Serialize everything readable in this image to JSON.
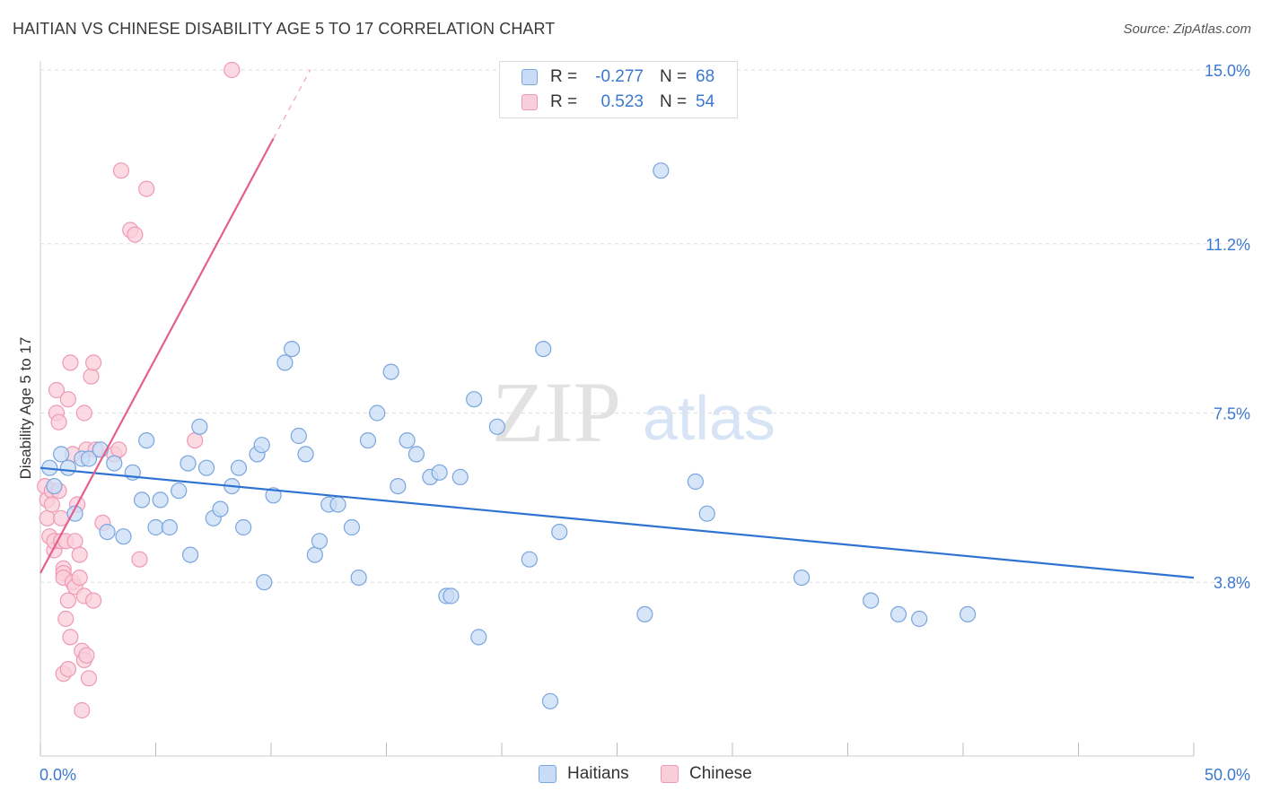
{
  "title": "HAITIAN VS CHINESE DISABILITY AGE 5 TO 17 CORRELATION CHART",
  "source": "Source: ZipAtlas.com",
  "watermark": {
    "zip": "ZIP",
    "atlas": "atlas"
  },
  "colors": {
    "blue_fill": "#c9dcf5",
    "blue_stroke": "#7aa5de",
    "blue_line": "#2f73d2",
    "pink_fill": "#f9cedb",
    "pink_stroke": "#ee9ab4",
    "pink_line": "#e4608b",
    "tick_text": "#3b78d0",
    "grid": "#dddddd"
  },
  "legend": {
    "rows": [
      {
        "r_label": "R =",
        "r_value": "-0.277",
        "n_label": "N =",
        "n_value": "68",
        "color": "blue"
      },
      {
        "r_label": "R =",
        "r_value": "0.523",
        "n_label": "N =",
        "n_value": "54",
        "color": "pink"
      }
    ]
  },
  "bottom_legend": [
    {
      "label": "Haitians",
      "color": "blue"
    },
    {
      "label": "Chinese",
      "color": "pink"
    }
  ],
  "chart_data": {
    "type": "scatter",
    "title": "HAITIAN VS CHINESE DISABILITY AGE 5 TO 17 CORRELATION CHART",
    "xlabel": "",
    "ylabel": "Disability Age 5 to 17",
    "xlim": [
      0,
      50
    ],
    "ylim": [
      0,
      15.5
    ],
    "x_tick_labels": [
      "0.0%",
      "50.0%"
    ],
    "y_ticks": [
      3.8,
      7.5,
      11.2,
      15.0
    ],
    "y_tick_labels": [
      "3.8%",
      "7.5%",
      "11.2%",
      "15.0%"
    ],
    "grid": true,
    "series": [
      {
        "name": "Haitians",
        "color": "blue",
        "trend": {
          "x": [
            0,
            50
          ],
          "y": [
            6.3,
            3.9
          ]
        },
        "points": [
          [
            0.4,
            6.3
          ],
          [
            0.6,
            5.9
          ],
          [
            0.9,
            6.6
          ],
          [
            1.2,
            6.3
          ],
          [
            1.5,
            5.3
          ],
          [
            1.8,
            6.5
          ],
          [
            2.1,
            6.5
          ],
          [
            2.6,
            6.7
          ],
          [
            2.9,
            4.9
          ],
          [
            3.2,
            6.4
          ],
          [
            3.6,
            4.8
          ],
          [
            4.0,
            6.2
          ],
          [
            4.4,
            5.6
          ],
          [
            4.6,
            6.9
          ],
          [
            5.0,
            5.0
          ],
          [
            5.2,
            5.6
          ],
          [
            5.6,
            5.0
          ],
          [
            6.0,
            5.8
          ],
          [
            6.4,
            6.4
          ],
          [
            6.5,
            4.4
          ],
          [
            6.9,
            7.2
          ],
          [
            7.2,
            6.3
          ],
          [
            7.5,
            5.2
          ],
          [
            7.8,
            5.4
          ],
          [
            8.3,
            5.9
          ],
          [
            8.6,
            6.3
          ],
          [
            8.8,
            5.0
          ],
          [
            9.4,
            6.6
          ],
          [
            9.6,
            6.8
          ],
          [
            9.7,
            3.8
          ],
          [
            10.1,
            5.7
          ],
          [
            10.6,
            8.6
          ],
          [
            10.9,
            8.9
          ],
          [
            11.2,
            7.0
          ],
          [
            11.5,
            6.6
          ],
          [
            11.9,
            4.4
          ],
          [
            12.1,
            4.7
          ],
          [
            12.5,
            5.5
          ],
          [
            12.9,
            5.5
          ],
          [
            13.5,
            5.0
          ],
          [
            13.8,
            3.9
          ],
          [
            14.2,
            6.9
          ],
          [
            14.6,
            7.5
          ],
          [
            15.2,
            8.4
          ],
          [
            15.5,
            5.9
          ],
          [
            15.9,
            6.9
          ],
          [
            16.3,
            6.6
          ],
          [
            16.9,
            6.1
          ],
          [
            17.3,
            6.2
          ],
          [
            17.6,
            3.5
          ],
          [
            17.8,
            3.5
          ],
          [
            18.2,
            6.1
          ],
          [
            18.8,
            7.8
          ],
          [
            19.0,
            2.6
          ],
          [
            19.8,
            7.2
          ],
          [
            21.2,
            4.3
          ],
          [
            21.8,
            8.9
          ],
          [
            22.1,
            1.2
          ],
          [
            22.5,
            4.9
          ],
          [
            26.2,
            3.1
          ],
          [
            26.9,
            12.8
          ],
          [
            28.4,
            6.0
          ],
          [
            28.9,
            5.3
          ],
          [
            33.0,
            3.9
          ],
          [
            36.0,
            3.4
          ],
          [
            37.2,
            3.1
          ],
          [
            38.1,
            3.0
          ],
          [
            40.2,
            3.1
          ]
        ]
      },
      {
        "name": "Chinese",
        "color": "pink",
        "trend": {
          "x": [
            0,
            10.1
          ],
          "y": [
            4.0,
            13.5
          ]
        },
        "points": [
          [
            0.2,
            5.9
          ],
          [
            0.3,
            5.6
          ],
          [
            0.3,
            5.2
          ],
          [
            0.4,
            4.8
          ],
          [
            0.5,
            5.8
          ],
          [
            0.5,
            5.5
          ],
          [
            0.6,
            4.5
          ],
          [
            0.6,
            4.7
          ],
          [
            0.7,
            8.0
          ],
          [
            0.7,
            7.5
          ],
          [
            0.8,
            7.3
          ],
          [
            0.8,
            5.8
          ],
          [
            0.9,
            5.2
          ],
          [
            0.9,
            4.7
          ],
          [
            1.0,
            4.1
          ],
          [
            1.0,
            4.0
          ],
          [
            1.0,
            3.9
          ],
          [
            1.0,
            1.8
          ],
          [
            1.1,
            4.7
          ],
          [
            1.1,
            3.0
          ],
          [
            1.2,
            7.8
          ],
          [
            1.2,
            3.4
          ],
          [
            1.2,
            1.9
          ],
          [
            1.3,
            8.6
          ],
          [
            1.3,
            2.6
          ],
          [
            1.4,
            6.6
          ],
          [
            1.4,
            3.8
          ],
          [
            1.5,
            3.7
          ],
          [
            1.5,
            4.7
          ],
          [
            1.6,
            5.5
          ],
          [
            1.7,
            4.4
          ],
          [
            1.7,
            3.9
          ],
          [
            1.8,
            2.3
          ],
          [
            1.8,
            1.0
          ],
          [
            1.9,
            7.5
          ],
          [
            1.9,
            3.5
          ],
          [
            1.9,
            2.1
          ],
          [
            2.0,
            6.7
          ],
          [
            2.0,
            2.2
          ],
          [
            2.1,
            1.7
          ],
          [
            2.2,
            8.3
          ],
          [
            2.3,
            8.6
          ],
          [
            2.3,
            3.4
          ],
          [
            2.7,
            5.1
          ],
          [
            3.2,
            6.6
          ],
          [
            4.3,
            4.3
          ],
          [
            3.4,
            6.7
          ],
          [
            3.5,
            12.8
          ],
          [
            3.9,
            11.5
          ],
          [
            4.6,
            12.4
          ],
          [
            4.1,
            11.4
          ],
          [
            6.7,
            6.9
          ],
          [
            8.3,
            15.0
          ],
          [
            2.4,
            6.7
          ]
        ]
      }
    ]
  }
}
